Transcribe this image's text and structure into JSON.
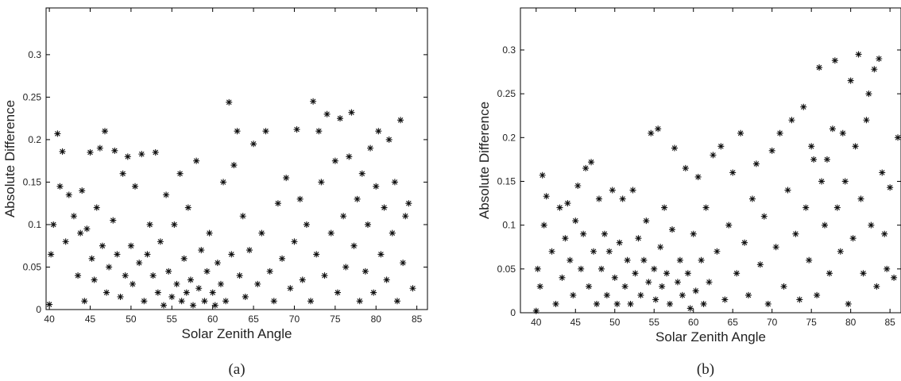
{
  "chart_data": [
    {
      "type": "scatter",
      "xlabel": "Solar Zenith Angle",
      "ylabel": "Absolute Difference",
      "panel_label": "(a)",
      "xlim": [
        39.6,
        86.3
      ],
      "ylim": [
        0,
        0.355
      ],
      "xticks": [
        40,
        45,
        50,
        55,
        60,
        65,
        70,
        75,
        80,
        85
      ],
      "yticks": [
        0,
        0.05,
        0.1,
        0.15,
        0.2,
        0.25,
        0.3
      ],
      "series": [
        {
          "color": "#111111",
          "x": [
            40,
            40.2,
            40.5,
            41,
            41.3,
            41.6,
            42,
            42.4,
            43,
            43.5,
            43.8,
            44,
            44.3,
            44.6,
            45,
            45.2,
            45.5,
            45.8,
            46.2,
            46.5,
            46.8,
            47,
            47.3,
            47.8,
            48,
            48.3,
            48.7,
            49,
            49.3,
            49.6,
            50,
            50.2,
            50.5,
            51,
            51.3,
            51.6,
            52,
            52.3,
            52.7,
            53,
            53.3,
            53.6,
            54,
            54.3,
            54.6,
            55,
            55.3,
            55.6,
            56,
            56.2,
            56.5,
            56.8,
            57,
            57.3,
            57.6,
            58,
            58.3,
            58.6,
            59,
            59.3,
            59.6,
            60,
            60.3,
            60.6,
            61,
            61.3,
            61.6,
            62,
            62.3,
            62.6,
            63,
            63.3,
            63.7,
            64,
            64.5,
            65,
            65.5,
            66,
            66.5,
            67,
            67.5,
            68,
            68.5,
            69,
            69.5,
            70,
            70.3,
            70.7,
            71,
            71.5,
            72,
            72.3,
            72.7,
            73,
            73.3,
            73.7,
            74,
            74.5,
            75,
            75.3,
            75.6,
            76,
            76.3,
            76.7,
            77,
            77.3,
            77.7,
            78,
            78.3,
            78.7,
            79,
            79.3,
            79.7,
            80,
            80.3,
            80.6,
            81,
            81.3,
            81.6,
            82,
            82.3,
            82.6,
            83,
            83.3,
            83.6,
            84,
            84.5
          ],
          "values": [
            0.006,
            0.065,
            0.1,
            0.207,
            0.145,
            0.186,
            0.08,
            0.135,
            0.11,
            0.04,
            0.09,
            0.14,
            0.01,
            0.095,
            0.185,
            0.06,
            0.035,
            0.12,
            0.19,
            0.075,
            0.21,
            0.02,
            0.05,
            0.105,
            0.187,
            0.065,
            0.015,
            0.16,
            0.04,
            0.18,
            0.075,
            0.03,
            0.145,
            0.055,
            0.183,
            0.01,
            0.065,
            0.1,
            0.04,
            0.185,
            0.02,
            0.08,
            0.005,
            0.135,
            0.045,
            0.015,
            0.1,
            0.03,
            0.16,
            0.01,
            0.06,
            0.02,
            0.12,
            0.035,
            0.005,
            0.175,
            0.025,
            0.07,
            0.01,
            0.045,
            0.09,
            0.02,
            0.005,
            0.055,
            0.03,
            0.15,
            0.01,
            0.244,
            0.065,
            0.17,
            0.21,
            0.04,
            0.11,
            0.015,
            0.07,
            0.195,
            0.03,
            0.09,
            0.21,
            0.045,
            0.01,
            0.125,
            0.06,
            0.155,
            0.025,
            0.08,
            0.212,
            0.13,
            0.035,
            0.1,
            0.01,
            0.245,
            0.065,
            0.21,
            0.15,
            0.04,
            0.23,
            0.09,
            0.175,
            0.02,
            0.225,
            0.11,
            0.05,
            0.18,
            0.232,
            0.075,
            0.13,
            0.01,
            0.16,
            0.045,
            0.1,
            0.19,
            0.02,
            0.145,
            0.21,
            0.065,
            0.12,
            0.035,
            0.2,
            0.09,
            0.15,
            0.01,
            0.223,
            0.055,
            0.11,
            0.125,
            0.025
          ]
        }
      ]
    },
    {
      "type": "scatter",
      "xlabel": "Solar Zenith Angle",
      "ylabel": "Absolute Difference",
      "panel_label": "(b)",
      "xlim": [
        38,
        86.4
      ],
      "ylim": [
        0,
        0.348
      ],
      "xticks": [
        40,
        45,
        50,
        55,
        60,
        65,
        70,
        75,
        80,
        85
      ],
      "yticks": [
        0,
        0.05,
        0.1,
        0.15,
        0.2,
        0.25,
        0.3
      ],
      "series": [
        {
          "color": "#111111",
          "x": [
            40,
            40.2,
            40.5,
            40.8,
            41,
            41.3,
            42,
            42.5,
            43,
            43.3,
            43.7,
            44,
            44.3,
            44.7,
            45,
            45.3,
            45.7,
            46,
            46.3,
            46.7,
            47,
            47.3,
            47.7,
            48,
            48.3,
            48.7,
            49,
            49.3,
            49.7,
            50,
            50.3,
            50.6,
            51,
            51.3,
            51.6,
            52,
            52.3,
            52.6,
            53,
            53.3,
            53.7,
            54,
            54.3,
            54.6,
            55,
            55.2,
            55.5,
            55.8,
            56,
            56.3,
            56.6,
            57,
            57.3,
            57.6,
            58,
            58.3,
            58.6,
            59,
            59.3,
            59.6,
            60,
            60.3,
            60.6,
            61,
            61.3,
            61.6,
            62,
            62.5,
            63,
            63.5,
            64,
            64.5,
            65,
            65.5,
            66,
            66.5,
            67,
            67.5,
            68,
            68.5,
            69,
            69.5,
            70,
            70.5,
            71,
            71.5,
            72,
            72.5,
            73,
            73.5,
            74,
            74.3,
            74.7,
            75,
            75.3,
            75.7,
            76,
            76.3,
            76.7,
            77,
            77.3,
            77.7,
            78,
            78.3,
            78.7,
            79,
            79.3,
            79.7,
            80,
            80.3,
            80.6,
            81,
            81.3,
            81.6,
            82,
            82.3,
            82.6,
            83,
            83.3,
            83.6,
            84,
            84.3,
            84.6,
            85,
            85.5,
            86
          ],
          "values": [
            0.002,
            0.05,
            0.03,
            0.157,
            0.1,
            0.133,
            0.07,
            0.01,
            0.12,
            0.04,
            0.085,
            0.125,
            0.06,
            0.02,
            0.105,
            0.145,
            0.05,
            0.09,
            0.165,
            0.03,
            0.172,
            0.07,
            0.01,
            0.13,
            0.05,
            0.09,
            0.02,
            0.07,
            0.14,
            0.04,
            0.01,
            0.08,
            0.13,
            0.03,
            0.06,
            0.01,
            0.14,
            0.045,
            0.085,
            0.02,
            0.06,
            0.105,
            0.035,
            0.205,
            0.05,
            0.015,
            0.21,
            0.075,
            0.03,
            0.12,
            0.045,
            0.01,
            0.095,
            0.188,
            0.035,
            0.06,
            0.02,
            0.165,
            0.045,
            0.005,
            0.09,
            0.025,
            0.155,
            0.06,
            0.01,
            0.12,
            0.035,
            0.18,
            0.07,
            0.19,
            0.015,
            0.1,
            0.16,
            0.045,
            0.205,
            0.08,
            0.02,
            0.13,
            0.17,
            0.055,
            0.11,
            0.01,
            0.185,
            0.075,
            0.205,
            0.03,
            0.14,
            0.22,
            0.09,
            0.015,
            0.235,
            0.12,
            0.06,
            0.19,
            0.175,
            0.02,
            0.28,
            0.15,
            0.1,
            0.175,
            0.045,
            0.21,
            0.288,
            0.12,
            0.07,
            0.205,
            0.15,
            0.01,
            0.265,
            0.085,
            0.19,
            0.295,
            0.13,
            0.045,
            0.22,
            0.25,
            0.1,
            0.278,
            0.03,
            0.29,
            0.16,
            0.09,
            0.05,
            0.143,
            0.04,
            0.2
          ]
        }
      ]
    }
  ]
}
